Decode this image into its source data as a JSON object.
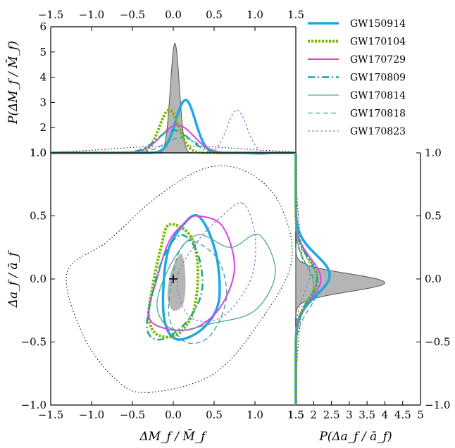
{
  "chart_data": {
    "type": "corner",
    "xlabel": "ΔM_f / M̄_f",
    "ylabel": "Δa_f / ā_f",
    "top_ylabel": "P(ΔM_f / M̄_f)",
    "right_xlabel": "P(Δa_f / ā_f)",
    "xlim": [
      -1.5,
      1.5
    ],
    "ylim": [
      -1.0,
      1.0
    ],
    "top_ylim": [
      1.0,
      6.0
    ],
    "right_xlim": [
      1.5,
      5.0
    ],
    "x_ticks": [
      "−1.5",
      "−1.0",
      "−0.5",
      "0.0",
      "0.5",
      "1.0",
      "1.5"
    ],
    "y_ticks": [
      "−1.0",
      "−0.5",
      "0.0",
      "0.5",
      "1.0"
    ],
    "top_y_ticks": [
      "1.0",
      "2",
      "3",
      "4",
      "5",
      "6"
    ],
    "right_x_ticks": [
      "1.5",
      "2",
      "2.5",
      "3",
      "3.5",
      "4",
      "4.5",
      "5"
    ],
    "legend_position": "top-right",
    "series": [
      {
        "name": "GW150914",
        "color": "#1ea7e8",
        "dash": "",
        "width": 3.5,
        "marginal_peak": [
          0.15,
          3.1
        ],
        "marginal_right_peak": [
          0.03,
          2.45
        ],
        "contour": [
          [
            0.3,
            0.5
          ],
          [
            0.45,
            0.35
          ],
          [
            0.55,
            0.1
          ],
          [
            0.55,
            -0.2
          ],
          [
            0.35,
            -0.4
          ],
          [
            0.05,
            -0.48
          ],
          [
            -0.1,
            -0.35
          ],
          [
            -0.12,
            -0.05
          ],
          [
            -0.05,
            0.25
          ],
          [
            0.15,
            0.45
          ]
        ]
      },
      {
        "name": "GW170104",
        "color": "#7ab800",
        "dash": "3,2",
        "width": 4,
        "marginal_peak": [
          -0.05,
          2.7
        ],
        "marginal_right_peak": [
          0.0,
          2.1
        ],
        "contour": [
          [
            -0.05,
            0.43
          ],
          [
            0.2,
            0.35
          ],
          [
            0.3,
            0.1
          ],
          [
            0.25,
            -0.25
          ],
          [
            0.05,
            -0.44
          ],
          [
            -0.2,
            -0.44
          ],
          [
            -0.3,
            -0.3
          ],
          [
            -0.25,
            -0.05
          ],
          [
            -0.15,
            0.25
          ]
        ]
      },
      {
        "name": "GW170729",
        "color": "#e040e0",
        "dash": "",
        "width": 2,
        "marginal_peak": [
          0.05,
          2.1
        ],
        "marginal_right_peak": [
          0.0,
          2.2
        ],
        "contour": [
          [
            0.3,
            0.5
          ],
          [
            0.6,
            0.42
          ],
          [
            0.75,
            0.1
          ],
          [
            0.6,
            -0.2
          ],
          [
            0.3,
            -0.38
          ],
          [
            -0.05,
            -0.4
          ],
          [
            -0.3,
            -0.3
          ],
          [
            -0.2,
            0.0
          ],
          [
            -0.05,
            0.3
          ],
          [
            0.15,
            0.45
          ]
        ]
      },
      {
        "name": "GW170809",
        "color": "#17a89a",
        "dash": "10,4,2,4",
        "width": 2.5,
        "marginal_peak": [
          0.0,
          1.9
        ],
        "marginal_right_peak": [
          0.0,
          2.1
        ],
        "contour": [
          [
            0.1,
            0.35
          ],
          [
            0.3,
            0.2
          ],
          [
            0.35,
            -0.1
          ],
          [
            0.15,
            -0.35
          ],
          [
            -0.15,
            -0.48
          ],
          [
            -0.32,
            -0.4
          ],
          [
            -0.25,
            -0.1
          ],
          [
            -0.1,
            0.2
          ]
        ]
      },
      {
        "name": "GW170814",
        "color": "#4aaa88",
        "dash": "",
        "width": 1.3,
        "marginal_peak": [
          1.05,
          0.95
        ],
        "marginal_right_peak": [
          -0.05,
          2.0
        ],
        "contour": [
          [
            0.3,
            0.35
          ],
          [
            0.7,
            0.25
          ],
          [
            1.05,
            0.35
          ],
          [
            1.25,
            0.05
          ],
          [
            1.0,
            -0.25
          ],
          [
            0.5,
            -0.35
          ],
          [
            0.0,
            -0.4
          ],
          [
            -0.2,
            -0.2
          ],
          [
            0.0,
            0.15
          ]
        ]
      },
      {
        "name": "GW170818",
        "color": "#3aa0a0",
        "dash": "7,4",
        "width": 1.3,
        "marginal_peak": [
          0.1,
          1.6
        ],
        "marginal_right_peak": [
          -0.08,
          2.1
        ],
        "contour": [
          [
            0.25,
            0.3
          ],
          [
            0.55,
            0.15
          ],
          [
            0.65,
            -0.15
          ],
          [
            0.45,
            -0.45
          ],
          [
            0.15,
            -0.5
          ],
          [
            -0.05,
            -0.3
          ],
          [
            0.0,
            0.05
          ],
          [
            0.1,
            0.25
          ]
        ]
      },
      {
        "name": "GW170823",
        "color": "#8a7fd8",
        "dash": "3,3",
        "width": 1.3,
        "marginal_peak": [
          0.78,
          2.7
        ],
        "marginal_right_peak": [
          0.05,
          1.9
        ],
        "contour": [
          [
            0.85,
            0.6
          ],
          [
            1.0,
            0.35
          ],
          [
            0.95,
            0.0
          ],
          [
            0.6,
            -0.3
          ],
          [
            0.2,
            -0.3
          ],
          [
            0.05,
            0.0
          ],
          [
            0.3,
            0.3
          ],
          [
            0.6,
            0.5
          ]
        ]
      }
    ],
    "prior_contour_style": "dotted",
    "combined_region_color": "#b5b5b5",
    "top_combined_peak": [
      0.02,
      5.35
    ],
    "right_combined_peak": [
      -0.03,
      4.0
    ],
    "gr_marker": [
      0.0,
      0.0
    ]
  }
}
